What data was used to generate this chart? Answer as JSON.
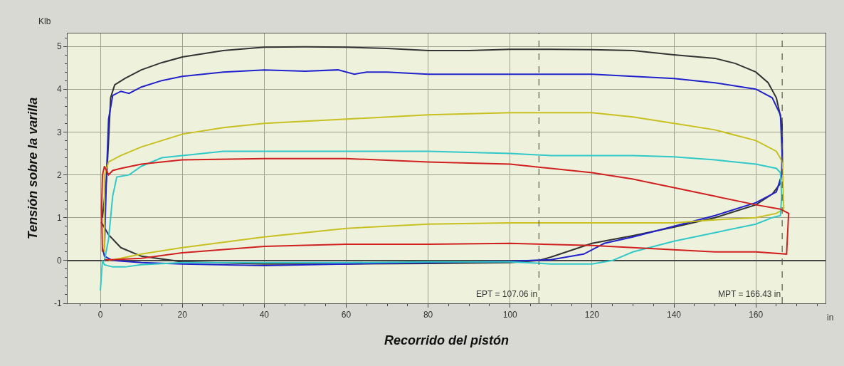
{
  "chart_data": {
    "type": "line",
    "xlabel": "Recorrido del pistón",
    "ylabel": "Tensión sobre la varilla",
    "annotations": [
      "Klb",
      "in"
    ],
    "xlim": [
      -8,
      177
    ],
    "xticks": [
      0,
      20,
      40,
      60,
      80,
      100,
      120,
      140,
      160
    ],
    "ylim": [
      -1,
      5.3
    ],
    "yticks": [
      -1,
      0,
      1,
      2,
      3,
      4,
      5
    ],
    "grid": true,
    "marker": "none",
    "line_style": "solid",
    "ref_lines": [
      {
        "axis": "x",
        "value": 107.06,
        "label": "EPT = 107.06 in",
        "line_style": "dashed",
        "color": "#555555"
      },
      {
        "axis": "x",
        "value": 166.43,
        "label": "MPT = 166.43 in",
        "line_style": "dashed",
        "color": "#555555"
      }
    ],
    "series": [
      {
        "color": "#333333",
        "x": [
          0.5,
          1.5,
          2,
          2.5,
          3.5,
          6,
          10,
          15,
          20,
          30,
          40,
          50,
          60,
          70,
          80,
          90,
          100,
          110,
          120,
          130,
          140,
          150,
          155,
          160,
          163,
          165,
          166.4,
          166.5,
          166,
          164,
          160,
          150,
          140,
          130,
          120,
          110,
          107,
          100,
          80,
          60,
          40,
          20,
          10,
          5,
          2,
          0.2
        ],
        "values": [
          1.0,
          1.9,
          2.8,
          3.8,
          4.1,
          4.25,
          4.45,
          4.62,
          4.75,
          4.9,
          4.98,
          4.99,
          4.98,
          4.95,
          4.9,
          4.9,
          4.93,
          4.93,
          4.92,
          4.9,
          4.8,
          4.72,
          4.6,
          4.4,
          4.15,
          3.8,
          3.2,
          2.2,
          1.8,
          1.55,
          1.3,
          1.0,
          0.78,
          0.58,
          0.4,
          0.08,
          0,
          -0.05,
          -0.07,
          -0.08,
          -0.08,
          -0.03,
          0.1,
          0.3,
          0.6,
          0.9
        ]
      },
      {
        "color": "#2222cc",
        "x": [
          1,
          1.5,
          2,
          3,
          5,
          7,
          10,
          15,
          20,
          25,
          30,
          40,
          50,
          58,
          62,
          65,
          70,
          80,
          90,
          100,
          110,
          120,
          130,
          140,
          150,
          160,
          164,
          166,
          166.4,
          166.3,
          165,
          160,
          150,
          140,
          130,
          123,
          118,
          110,
          100,
          80,
          60,
          40,
          20,
          10,
          3,
          1,
          0.5
        ],
        "values": [
          0.3,
          2,
          3.3,
          3.85,
          3.95,
          3.9,
          4.05,
          4.2,
          4.3,
          4.35,
          4.4,
          4.45,
          4.42,
          4.45,
          4.35,
          4.4,
          4.4,
          4.35,
          4.35,
          4.35,
          4.35,
          4.35,
          4.3,
          4.25,
          4.15,
          4.0,
          3.8,
          3.4,
          2.5,
          2.0,
          1.6,
          1.35,
          1.05,
          0.8,
          0.55,
          0.4,
          0.15,
          0.02,
          -0.02,
          -0.05,
          -0.08,
          -0.12,
          -0.08,
          -0.05,
          0,
          0.1,
          0.3
        ]
      },
      {
        "color": "#c8c020",
        "x": [
          1,
          1,
          2,
          5,
          10,
          20,
          30,
          40,
          60,
          80,
          100,
          110,
          120,
          130,
          140,
          150,
          160,
          165,
          166.5,
          166.8,
          165,
          160,
          150,
          140,
          120,
          100,
          80,
          60,
          40,
          20,
          10,
          5,
          2
        ],
        "values": [
          0.2,
          2.0,
          2.3,
          2.45,
          2.65,
          2.95,
          3.1,
          3.2,
          3.3,
          3.4,
          3.45,
          3.45,
          3.45,
          3.35,
          3.2,
          3.05,
          2.8,
          2.55,
          2.3,
          1.2,
          1.1,
          1.0,
          0.95,
          0.88,
          0.88,
          0.88,
          0.85,
          0.75,
          0.55,
          0.3,
          0.15,
          0.05,
          0
        ]
      },
      {
        "color": "#30c8c8",
        "x": [
          0,
          0.5,
          1,
          3,
          6,
          10,
          20,
          40,
          60,
          80,
          100,
          110,
          120,
          125,
          130,
          140,
          150,
          160,
          164,
          166,
          166.3,
          166,
          165,
          160,
          150,
          140,
          130,
          120,
          110,
          100,
          80,
          60,
          40,
          30,
          20,
          15,
          10,
          7,
          4,
          3,
          2,
          1
        ],
        "values": [
          -0.7,
          0,
          -0.1,
          -0.15,
          -0.15,
          -0.1,
          -0.05,
          -0.05,
          -0.05,
          -0.03,
          -0.03,
          -0.08,
          -0.08,
          0,
          0.2,
          0.45,
          0.65,
          0.85,
          1.0,
          1.05,
          1.5,
          2.05,
          2.15,
          2.25,
          2.35,
          2.42,
          2.45,
          2.45,
          2.45,
          2.5,
          2.55,
          2.55,
          2.55,
          2.55,
          2.45,
          2.4,
          2.2,
          2.0,
          1.95,
          1.5,
          0.5,
          0
        ]
      },
      {
        "color": "#d02020",
        "x": [
          0.5,
          0.3,
          0.5,
          1,
          2,
          3,
          5,
          10,
          20,
          40,
          60,
          80,
          100,
          110,
          120,
          130,
          140,
          150,
          160,
          166,
          168,
          167.5,
          160,
          150,
          140,
          130,
          120,
          100,
          80,
          60,
          40,
          20,
          10,
          3,
          1
        ],
        "values": [
          0.2,
          1.2,
          2.0,
          2.2,
          2.0,
          2.1,
          2.15,
          2.25,
          2.35,
          2.38,
          2.38,
          2.3,
          2.25,
          2.15,
          2.05,
          1.9,
          1.7,
          1.5,
          1.3,
          1.2,
          1.1,
          0.15,
          0.2,
          0.2,
          0.25,
          0.3,
          0.35,
          0.4,
          0.38,
          0.38,
          0.33,
          0.18,
          0.05,
          0.02,
          0.02
        ]
      }
    ]
  }
}
